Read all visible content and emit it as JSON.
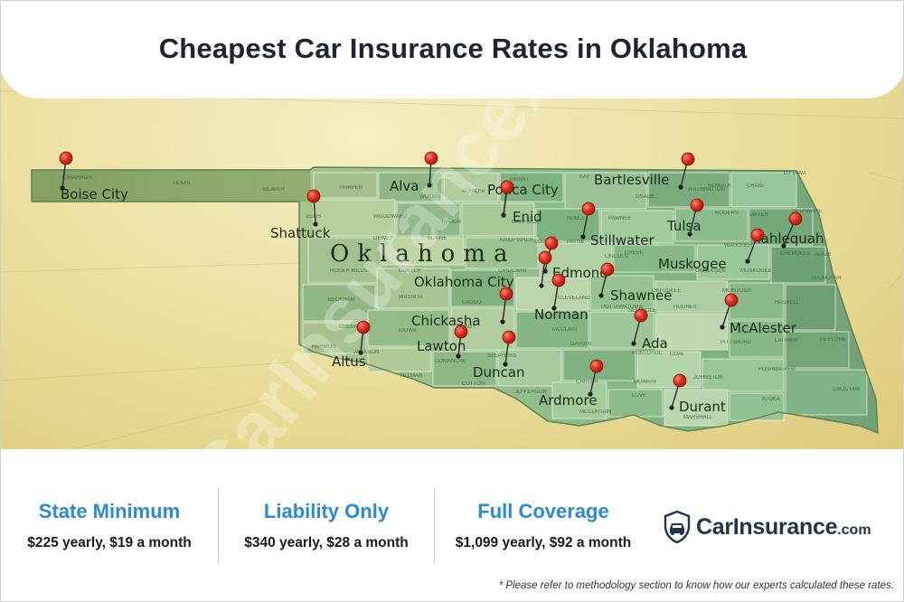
{
  "title": "Cheapest Car Insurance Rates in Oklahoma",
  "map": {
    "state_label": "Oklahoma",
    "watermark": "CarInsurance.com",
    "cities": [
      {
        "name": "Boise City"
      },
      {
        "name": "Alva"
      },
      {
        "name": "Ponca City"
      },
      {
        "name": "Bartlesville"
      },
      {
        "name": "Shattuck"
      },
      {
        "name": "Enid"
      },
      {
        "name": "Stillwater"
      },
      {
        "name": "Tulsa"
      },
      {
        "name": "Tahlequah"
      },
      {
        "name": "Muskogee"
      },
      {
        "name": "Edmond"
      },
      {
        "name": "Oklahoma City"
      },
      {
        "name": "Shawnee"
      },
      {
        "name": "Norman"
      },
      {
        "name": "Chickasha"
      },
      {
        "name": "McAlester"
      },
      {
        "name": "Lawton"
      },
      {
        "name": "Ada"
      },
      {
        "name": "Altus"
      },
      {
        "name": "Duncan"
      },
      {
        "name": "Ardmore"
      },
      {
        "name": "Durant"
      }
    ],
    "counties": [
      "CIMARRON",
      "TEXAS",
      "BEAVER",
      "HARPER",
      "WOODS",
      "ALFALFA",
      "GRANT",
      "KAY",
      "OSAGE",
      "NOWATA",
      "CRAIG",
      "OTTAWA",
      "WASHINGTON",
      "ELLIS",
      "WOODWARD",
      "MAJOR",
      "GARFIELD",
      "NOBLE",
      "PAWNEE",
      "ROGERS",
      "MAYES",
      "DELAWARE",
      "DEWEY",
      "BLAINE",
      "KINGFISHER",
      "LOGAN",
      "PAYNE",
      "CREEK",
      "WAGONER",
      "CHEROKEE",
      "ADAIR",
      "ROGER MILLS",
      "CUSTER",
      "CANADIAN",
      "LINCOLN",
      "OKMULGEE",
      "MUSKOGEE",
      "SEQUOYAH",
      "BECKHAM",
      "WASHITA",
      "CADDO",
      "CLEVELAND",
      "POTTAWATOMIE",
      "OKFUSKEE",
      "MCINTOSH",
      "HASKELL",
      "GREER",
      "KIOWA",
      "GRADY",
      "MCCLAIN",
      "SEMINOLE",
      "HUGHES",
      "PITTSBURG",
      "LATIMER",
      "LE FLORE",
      "HARMON",
      "JACKSON",
      "COMANCHE",
      "STEPHENS",
      "GARVIN",
      "PONTOTOC",
      "COAL",
      "PUSHMATAHA",
      "TILLMAN",
      "COTTON",
      "JEFFERSON",
      "CARTER",
      "MURRAY",
      "JOHNSTON",
      "ATOKA",
      "CHOCTAW",
      "MCCURTAIN",
      "LOVE",
      "MARSHALL",
      "BRYAN"
    ]
  },
  "stats": [
    {
      "title": "State Minimum",
      "value": "$225 yearly, $19 a month"
    },
    {
      "title": "Liability Only",
      "value": "$340 yearly, $28 a month"
    },
    {
      "title": "Full Coverage",
      "value": "$1,099 yearly, $92 a month"
    }
  ],
  "logo": {
    "brand": "CarInsurance",
    "suffix": ".com"
  },
  "footnote": "* Please refer to methodology section to know how our experts calculated these rates.",
  "colors": {
    "title": "#1e2530",
    "stat_title": "#2a8ad2",
    "logo": "#21344f",
    "pin": "#d62a1e",
    "map_green": "#7fae7f"
  }
}
